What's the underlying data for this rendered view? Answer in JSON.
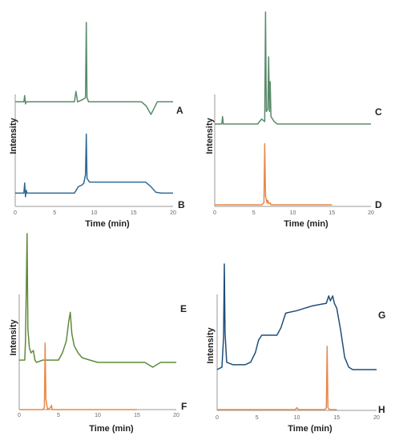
{
  "chart_data": [
    {
      "panel": "top-left",
      "type": "line",
      "xlabel": "Time (min)",
      "ylabel": "Intensity",
      "xlim": [
        0,
        20
      ],
      "xticks": [
        "0",
        "5",
        "10",
        "15",
        "20"
      ],
      "series": [
        {
          "name": "A",
          "color": "#5a8a6a",
          "points": [
            [
              0,
              0.62
            ],
            [
              1.1,
              0.62
            ],
            [
              1.2,
              0.65
            ],
            [
              1.3,
              0.61
            ],
            [
              1.4,
              0.62
            ],
            [
              7.5,
              0.62
            ],
            [
              7.7,
              0.67
            ],
            [
              7.9,
              0.62
            ],
            [
              8.5,
              0.63
            ],
            [
              8.9,
              0.64
            ],
            [
              9.0,
              1.0
            ],
            [
              9.1,
              0.64
            ],
            [
              9.3,
              0.62
            ],
            [
              16,
              0.62
            ],
            [
              16.6,
              0.6
            ],
            [
              17.2,
              0.56
            ],
            [
              17.6,
              0.59
            ],
            [
              18,
              0.62
            ],
            [
              20,
              0.62
            ]
          ]
        },
        {
          "name": "B",
          "color": "#2f6a96",
          "points": [
            [
              0,
              0.06
            ],
            [
              1.1,
              0.06
            ],
            [
              1.2,
              0.17
            ],
            [
              1.3,
              0.02
            ],
            [
              1.4,
              0.09
            ],
            [
              1.5,
              0.06
            ],
            [
              7.5,
              0.06
            ],
            [
              8.0,
              0.13
            ],
            [
              8.5,
              0.15
            ],
            [
              8.7,
              0.17
            ],
            [
              8.9,
              0.26
            ],
            [
              9.0,
              0.7
            ],
            [
              9.1,
              0.22
            ],
            [
              9.4,
              0.18
            ],
            [
              16.5,
              0.18
            ],
            [
              17.2,
              0.13
            ],
            [
              17.8,
              0.07
            ],
            [
              18.5,
              0.06
            ],
            [
              20,
              0.06
            ]
          ]
        }
      ]
    },
    {
      "panel": "top-right",
      "type": "line",
      "xlabel": "Time (min)",
      "ylabel": "Intensity",
      "xlim": [
        0,
        20
      ],
      "xticks": [
        "0",
        "5",
        "10",
        "15",
        "20"
      ],
      "series": [
        {
          "name": "C",
          "color": "#5a8a6a",
          "points": [
            [
              0,
              0.55
            ],
            [
              0.9,
              0.55
            ],
            [
              1.0,
              0.58
            ],
            [
              1.1,
              0.55
            ],
            [
              5.5,
              0.55
            ],
            [
              6.0,
              0.57
            ],
            [
              6.4,
              0.56
            ],
            [
              6.5,
              1.0
            ],
            [
              6.6,
              0.6
            ],
            [
              6.8,
              0.61
            ],
            [
              6.9,
              0.82
            ],
            [
              7.0,
              0.6
            ],
            [
              7.1,
              0.72
            ],
            [
              7.2,
              0.58
            ],
            [
              7.6,
              0.56
            ],
            [
              8,
              0.55
            ],
            [
              20,
              0.55
            ]
          ]
        },
        {
          "name": "D",
          "color": "#e8894a",
          "points": [
            [
              0,
              0.03
            ],
            [
              6.0,
              0.03
            ],
            [
              6.3,
              0.05
            ],
            [
              6.4,
              0.68
            ],
            [
              6.5,
              0.12
            ],
            [
              6.7,
              0.05
            ],
            [
              6.8,
              0.08
            ],
            [
              6.9,
              0.04
            ],
            [
              7.1,
              0.05
            ],
            [
              7.2,
              0.03
            ],
            [
              15,
              0.03
            ]
          ]
        }
      ]
    },
    {
      "panel": "bottom-left",
      "type": "line",
      "xlabel": "Time (min)",
      "ylabel": "Intensity",
      "xlim": [
        0,
        20
      ],
      "xticks": [
        "0",
        "5",
        "10",
        "15",
        "20"
      ],
      "series": [
        {
          "name": "E",
          "color": "#5f8a3a",
          "points": [
            [
              0,
              0.47
            ],
            [
              0.7,
              0.47
            ],
            [
              0.8,
              0.55
            ],
            [
              0.9,
              0.77
            ],
            [
              1.0,
              1.0
            ],
            [
              1.1,
              0.6
            ],
            [
              1.3,
              0.52
            ],
            [
              1.5,
              0.5
            ],
            [
              1.8,
              0.51
            ],
            [
              2.0,
              0.47
            ],
            [
              2.2,
              0.46
            ],
            [
              3.0,
              0.47
            ],
            [
              3.5,
              0.47
            ],
            [
              5.0,
              0.47
            ],
            [
              5.5,
              0.5
            ],
            [
              6.0,
              0.55
            ],
            [
              6.3,
              0.63
            ],
            [
              6.5,
              0.67
            ],
            [
              6.7,
              0.58
            ],
            [
              7.0,
              0.53
            ],
            [
              7.5,
              0.5
            ],
            [
              8.0,
              0.48
            ],
            [
              9.0,
              0.47
            ],
            [
              10,
              0.46
            ],
            [
              16,
              0.46
            ],
            [
              16.5,
              0.45
            ],
            [
              17.0,
              0.44
            ],
            [
              17.5,
              0.45
            ],
            [
              18,
              0.46
            ],
            [
              20,
              0.46
            ]
          ]
        },
        {
          "name": "F",
          "color": "#e8894a",
          "points": [
            [
              0,
              0.03
            ],
            [
              3.0,
              0.03
            ],
            [
              3.2,
              0.05
            ],
            [
              3.3,
              0.66
            ],
            [
              3.4,
              0.13
            ],
            [
              3.6,
              0.03
            ],
            [
              4.0,
              0.05
            ],
            [
              4.1,
              0.07
            ],
            [
              4.2,
              0.03
            ],
            [
              15,
              0.03
            ]
          ]
        }
      ]
    },
    {
      "panel": "bottom-right",
      "type": "line",
      "xlabel": "Time (min)",
      "ylabel": "Intensity",
      "xlim": [
        0,
        20
      ],
      "xticks": [
        "0",
        "5",
        "10",
        "15",
        "20"
      ],
      "series": [
        {
          "name": "G",
          "color": "#1f4e79",
          "points": [
            [
              0,
              0.57
            ],
            [
              0.6,
              0.58
            ],
            [
              0.8,
              0.7
            ],
            [
              0.9,
              1.0
            ],
            [
              1.0,
              0.72
            ],
            [
              1.2,
              0.6
            ],
            [
              2,
              0.59
            ],
            [
              3.5,
              0.59
            ],
            [
              4.2,
              0.6
            ],
            [
              4.8,
              0.64
            ],
            [
              5.2,
              0.69
            ],
            [
              5.6,
              0.71
            ],
            [
              6,
              0.71
            ],
            [
              7.5,
              0.71
            ],
            [
              8.0,
              0.74
            ],
            [
              8.4,
              0.78
            ],
            [
              8.6,
              0.8
            ],
            [
              10,
              0.81
            ],
            [
              12,
              0.83
            ],
            [
              13.7,
              0.84
            ],
            [
              14.0,
              0.87
            ],
            [
              14.2,
              0.85
            ],
            [
              14.5,
              0.87
            ],
            [
              14.7,
              0.84
            ],
            [
              15.0,
              0.82
            ],
            [
              15.5,
              0.73
            ],
            [
              16,
              0.62
            ],
            [
              16.5,
              0.58
            ],
            [
              17,
              0.57
            ],
            [
              20,
              0.57
            ]
          ]
        },
        {
          "name": "H",
          "color": "#e8894a",
          "points": [
            [
              0,
              0.03
            ],
            [
              9.8,
              0.03
            ],
            [
              10.0,
              0.05
            ],
            [
              10.2,
              0.03
            ],
            [
              13.5,
              0.03
            ],
            [
              13.7,
              0.05
            ],
            [
              13.8,
              0.68
            ],
            [
              13.9,
              0.05
            ],
            [
              14.1,
              0.03
            ],
            [
              15,
              0.03
            ]
          ]
        }
      ]
    }
  ]
}
